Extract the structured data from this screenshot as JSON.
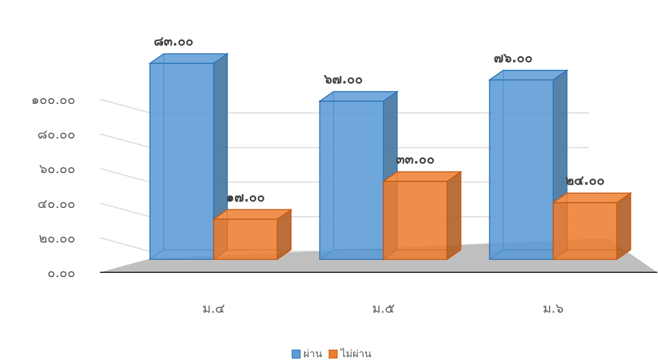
{
  "chart_data": {
    "type": "bar",
    "subtype": "3d-clustered-column",
    "categories": [
      "ม.๔",
      "ม.๕",
      "ม.๖"
    ],
    "series": [
      {
        "name": "ผ่าน",
        "values": [
          83,
          67,
          76
        ],
        "labels": [
          "๘๓.๐๐",
          "๖๗.๐๐",
          "๗๖.๐๐"
        ],
        "color": "#5B9BD5"
      },
      {
        "name": "ไม่ผ่าน",
        "values": [
          17,
          33,
          24
        ],
        "labels": [
          "๑๗.๐๐",
          "๓๓.๐๐",
          "๒๔.๐๐"
        ],
        "color": "#ED7D31"
      }
    ],
    "y_ticks": [
      "๐.๐๐",
      "๒๐.๐๐",
      "๔๐.๐๐",
      "๖๐.๐๐",
      "๘๐.๐๐",
      "๑๐๐.๐๐"
    ],
    "ylim": [
      0,
      100
    ],
    "grid": true,
    "legend": "bottom"
  }
}
